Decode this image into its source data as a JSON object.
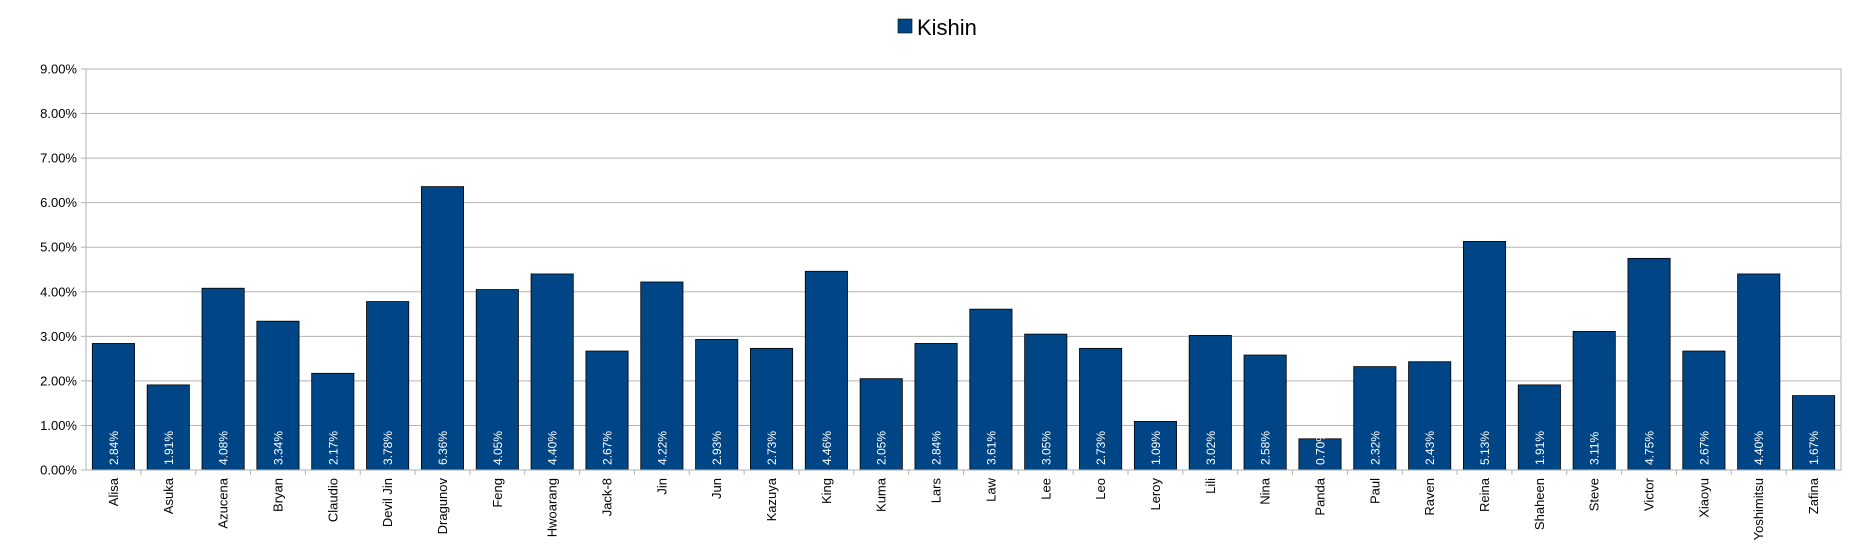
{
  "chart_data": {
    "type": "bar",
    "categories": [
      "Alisa",
      "Asuka",
      "Azucena",
      "Bryan",
      "Claudio",
      "Devil Jin",
      "Dragunov",
      "Feng",
      "Hwoarang",
      "Jack-8",
      "Jin",
      "Jun",
      "Kazuya",
      "King",
      "Kuma",
      "Lars",
      "Law",
      "Lee",
      "Leo",
      "Leroy",
      "Lili",
      "Nina",
      "Panda",
      "Paul",
      "Raven",
      "Reina",
      "Shaheen",
      "Steve",
      "Victor",
      "Xiaoyu",
      "Yoshimitsu",
      "Zafina"
    ],
    "series": [
      {
        "name": "Kishin",
        "color": "#004586",
        "values": [
          2.84,
          1.91,
          4.08,
          3.34,
          2.17,
          3.78,
          6.36,
          4.05,
          4.4,
          2.67,
          4.22,
          2.93,
          2.73,
          4.46,
          2.05,
          2.84,
          3.61,
          3.05,
          2.73,
          1.09,
          3.02,
          2.58,
          0.7,
          2.32,
          2.43,
          5.13,
          1.91,
          3.11,
          4.75,
          2.67,
          4.4,
          1.67
        ]
      }
    ],
    "data_labels": [
      "2.84%",
      "1.91%",
      "4.08%",
      "3.34%",
      "2.17%",
      "3.78%",
      "6.36%",
      "4.05%",
      "4.40%",
      "2.67%",
      "4.22%",
      "2.93%",
      "2.73%",
      "4.46%",
      "2.05%",
      "2.84%",
      "3.61%",
      "3.05%",
      "2.73%",
      "1.09%",
      "3.02%",
      "2.58%",
      "0.70%",
      "2.32%",
      "2.43%",
      "5.13%",
      "1.91%",
      "3.11%",
      "4.75%",
      "2.67%",
      "4.40%",
      "1.67%"
    ],
    "y_ticks": [
      "0.00%",
      "1.00%",
      "2.00%",
      "3.00%",
      "4.00%",
      "5.00%",
      "6.00%",
      "7.00%",
      "8.00%",
      "9.00%"
    ],
    "ylim": [
      0,
      9
    ],
    "grid": true,
    "legend_position": "top-center",
    "title": "",
    "xlabel": "",
    "ylabel": ""
  }
}
